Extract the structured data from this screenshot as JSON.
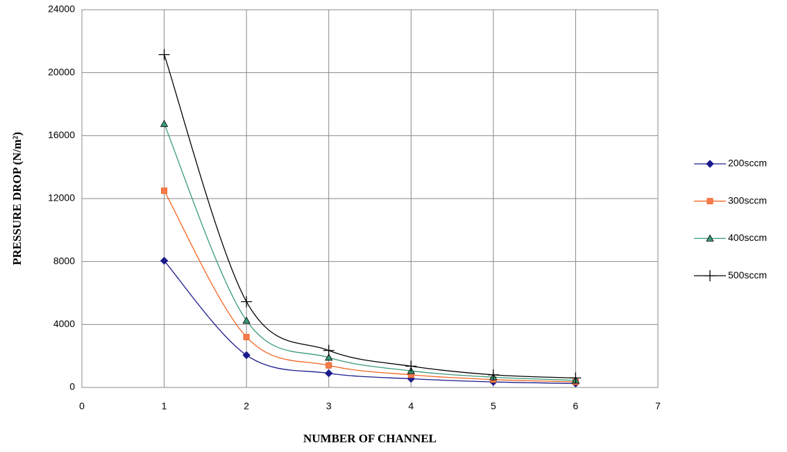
{
  "chart_data": {
    "type": "line",
    "x_label": "NUMBER OF CHANNEL",
    "y_label": "PRESSURE DROP (N/m²)",
    "x": [
      1,
      2,
      3,
      4,
      5,
      6
    ],
    "series": [
      {
        "name": "200sccm",
        "color": "#1a1a8c",
        "marker": "diamond",
        "values": [
          8050,
          2050,
          900,
          550,
          350,
          250
        ]
      },
      {
        "name": "300sccm",
        "color": "#f26522",
        "marker": "square",
        "values": [
          12500,
          3200,
          1400,
          800,
          500,
          350
        ]
      },
      {
        "name": "400sccm",
        "color": "#3a9a7a",
        "marker": "triangle",
        "values": [
          16750,
          4250,
          1900,
          1050,
          650,
          450
        ]
      },
      {
        "name": "500sccm",
        "color": "#000000",
        "marker": "plus",
        "values": [
          21150,
          5450,
          2350,
          1350,
          800,
          600
        ]
      }
    ],
    "xlim": [
      0,
      7
    ],
    "xticks": [
      0,
      1,
      2,
      3,
      4,
      5,
      6,
      7
    ],
    "ylim": [
      0,
      24000
    ],
    "yticks": [
      0,
      4000,
      8000,
      12000,
      16000,
      20000,
      24000
    ],
    "grid": true,
    "legend": "right"
  }
}
